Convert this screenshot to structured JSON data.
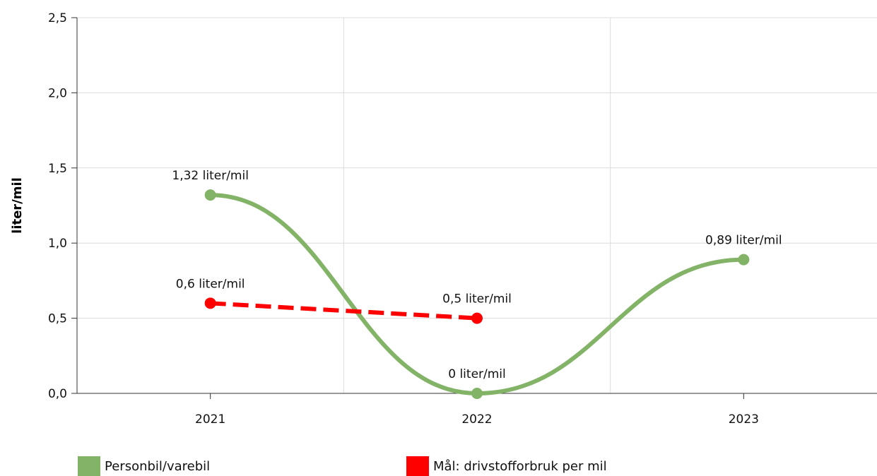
{
  "chart_data": {
    "type": "line",
    "title": "",
    "xlabel": "",
    "ylabel": "liter/mil",
    "categories": [
      "2021",
      "2022",
      "2023"
    ],
    "ylim": [
      0,
      2.5
    ],
    "yticks": [
      "0,0",
      "0,5",
      "1,0",
      "1,5",
      "2,0",
      "2,5"
    ],
    "grid": true,
    "legend_position": "bottom",
    "series": [
      {
        "name": "Personbil/varebil",
        "color": "#82b366",
        "style": "smooth-solid",
        "values": [
          1.32,
          0.0,
          0.89
        ],
        "labels": [
          "1,32 liter/mil",
          "0 liter/mil",
          "0,89 liter/mil"
        ]
      },
      {
        "name": "Mål: drivstofforbruk per mil",
        "color": "#ff0000",
        "style": "dashed",
        "values": [
          0.6,
          0.5,
          null
        ],
        "labels": [
          "0,6 liter/mil",
          "0,5 liter/mil",
          null
        ]
      }
    ]
  }
}
